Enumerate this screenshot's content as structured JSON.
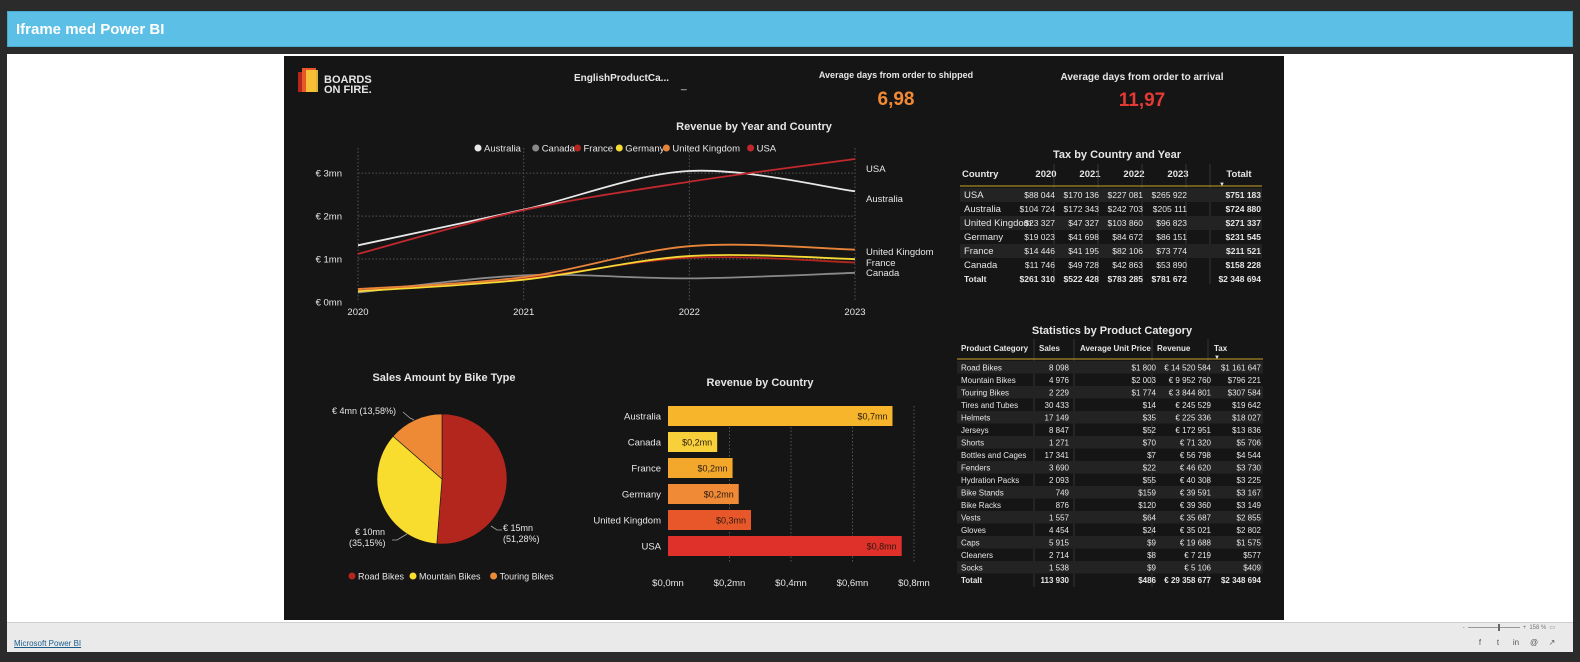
{
  "header": {
    "title": "Iframe med Power BI"
  },
  "report": {
    "logo": {
      "line1": "BOARDS",
      "line2": "ON FIRE."
    },
    "slicer": {
      "label": "EnglishProductCa...",
      "value": "_"
    },
    "kpi_shipped": {
      "label": "Average days from order to shipped",
      "value": "6,98",
      "color": "#f28a33"
    },
    "kpi_arrival": {
      "label": "Average days from order to arrival",
      "value": "11,97",
      "color": "#e53935"
    },
    "line_chart": {
      "title": "Revenue by Year and Country",
      "legend": [
        {
          "name": "Australia",
          "color": "#e8e8e8"
        },
        {
          "name": "Canada",
          "color": "#8a8a8a"
        },
        {
          "name": "France",
          "color": "#b3261e"
        },
        {
          "name": "Germany",
          "color": "#f5d935"
        },
        {
          "name": "United Kingdom",
          "color": "#e8843a"
        },
        {
          "name": "USA",
          "color": "#c0282d"
        }
      ],
      "y_ticks": [
        "€ 0mn",
        "€ 1mn",
        "€ 2mn",
        "€ 3mn"
      ],
      "x_ticks": [
        "2020",
        "2021",
        "2022",
        "2023"
      ],
      "end_labels": [
        "USA",
        "Australia",
        "United Kingdom",
        "France",
        "Canada"
      ]
    },
    "tax_table": {
      "title": "Tax by Country and Year",
      "headers": [
        "Country",
        "2020",
        "2021",
        "2022",
        "2023",
        "Totalt"
      ],
      "rows": [
        [
          "USA",
          "$88 044",
          "$170 136",
          "$227 081",
          "$265 922",
          "$751 183"
        ],
        [
          "Australia",
          "$104 724",
          "$172 343",
          "$242 703",
          "$205 111",
          "$724 880"
        ],
        [
          "United Kingdom",
          "$23 327",
          "$47 327",
          "$103 860",
          "$96 823",
          "$271 337"
        ],
        [
          "Germany",
          "$19 023",
          "$41 698",
          "$84 672",
          "$86 151",
          "$231 545"
        ],
        [
          "France",
          "$14 446",
          "$41 195",
          "$82 106",
          "$73 774",
          "$211 521"
        ],
        [
          "Canada",
          "$11 746",
          "$49 728",
          "$42 863",
          "$53 890",
          "$158 228"
        ]
      ],
      "total": [
        "Totalt",
        "$261 310",
        "$522 428",
        "$783 285",
        "$781 672",
        "$2 348 694"
      ]
    },
    "pie_chart": {
      "title": "Sales Amount by Bike Type",
      "labels": {
        "road": [
          "€ 15mn",
          "(51,28%)"
        ],
        "mountain": [
          "€ 10mn",
          "(35,15%)"
        ],
        "touring": [
          "€ 4mn (13,58%)"
        ]
      },
      "legend": [
        {
          "name": "Road Bikes",
          "color": "#b3261e"
        },
        {
          "name": "Mountain Bikes",
          "color": "#f8dd2f"
        },
        {
          "name": "Touring Bikes",
          "color": "#ee8a36"
        }
      ]
    },
    "bar_chart": {
      "title": "Revenue by Country",
      "x_ticks": [
        "$0,0mn",
        "$0,2mn",
        "$0,4mn",
        "$0,6mn",
        "$0,8mn"
      ]
    },
    "stats_table": {
      "title": "Statistics by Product Category",
      "headers": [
        "Product Category",
        "Sales",
        "Average Unit Price",
        "Revenue",
        "Tax"
      ],
      "rows": [
        [
          "Road Bikes",
          "8 098",
          "$1 800",
          "€ 14 520 584",
          "$1 161 647"
        ],
        [
          "Mountain Bikes",
          "4 976",
          "$2 003",
          "€ 9 952 760",
          "$796 221"
        ],
        [
          "Touring Bikes",
          "2 229",
          "$1 774",
          "€ 3 844 801",
          "$307 584"
        ],
        [
          "Tires and Tubes",
          "30 433",
          "$14",
          "€ 245 529",
          "$19 642"
        ],
        [
          "Helmets",
          "17 149",
          "$35",
          "€ 225 336",
          "$18 027"
        ],
        [
          "Jerseys",
          "8 847",
          "$52",
          "€ 172 951",
          "$13 836"
        ],
        [
          "Shorts",
          "1 271",
          "$70",
          "€ 71 320",
          "$5 706"
        ],
        [
          "Bottles and Cages",
          "17 341",
          "$7",
          "€ 56 798",
          "$4 544"
        ],
        [
          "Fenders",
          "3 690",
          "$22",
          "€ 46 620",
          "$3 730"
        ],
        [
          "Hydration Packs",
          "2 093",
          "$55",
          "€ 40 308",
          "$3 225"
        ],
        [
          "Bike Stands",
          "749",
          "$159",
          "€ 39 591",
          "$3 167"
        ],
        [
          "Bike Racks",
          "876",
          "$120",
          "€ 39 360",
          "$3 149"
        ],
        [
          "Vests",
          "1 557",
          "$64",
          "€ 35 687",
          "$2 855"
        ],
        [
          "Gloves",
          "4 454",
          "$24",
          "€ 35 021",
          "$2 802"
        ],
        [
          "Caps",
          "5 915",
          "$9",
          "€ 19 688",
          "$1 575"
        ],
        [
          "Cleaners",
          "2 714",
          "$8",
          "€ 7 219",
          "$577"
        ],
        [
          "Socks",
          "1 538",
          "$9",
          "€ 5 106",
          "$409"
        ]
      ],
      "total": [
        "Totalt",
        "113 930",
        "$486",
        "€ 29 358 677",
        "$2 348 694"
      ]
    }
  },
  "chart_data": [
    {
      "type": "line",
      "title": "Revenue by Year and Country",
      "x": [
        2020,
        2021,
        2022,
        2023
      ],
      "ylim": [
        0,
        3.4
      ],
      "series": [
        {
          "name": "Australia",
          "values": [
            1.32,
            2.15,
            3.05,
            2.58
          ]
        },
        {
          "name": "Canada",
          "values": [
            0.22,
            0.62,
            0.55,
            0.68
          ]
        },
        {
          "name": "France",
          "values": [
            0.28,
            0.55,
            1.03,
            0.92
          ]
        },
        {
          "name": "Germany",
          "values": [
            0.25,
            0.52,
            1.07,
            1.0
          ]
        },
        {
          "name": "United Kingdom",
          "values": [
            0.3,
            0.58,
            1.3,
            1.22
          ]
        },
        {
          "name": "USA",
          "values": [
            1.12,
            2.14,
            2.8,
            3.33
          ]
        }
      ]
    },
    {
      "type": "pie",
      "title": "Sales Amount by Bike Type",
      "categories": [
        "Road Bikes",
        "Mountain Bikes",
        "Touring Bikes"
      ],
      "values": [
        51.28,
        35.15,
        13.58
      ]
    },
    {
      "type": "bar",
      "title": "Revenue by Country",
      "categories": [
        "Australia",
        "Canada",
        "France",
        "Germany",
        "United Kingdom",
        "USA"
      ],
      "values": [
        0.73,
        0.16,
        0.21,
        0.23,
        0.27,
        0.76
      ],
      "data_labels": [
        "$0,7mn",
        "$0,2mn",
        "$0,2mn",
        "$0,2mn",
        "$0,3mn",
        "$0,8mn"
      ],
      "colors": [
        "#f6b52a",
        "#f8d13a",
        "#f3a82c",
        "#f08a36",
        "#e8572a",
        "#e0302a"
      ],
      "xlim": [
        0,
        0.8
      ]
    }
  ],
  "footer": {
    "link": "Microsoft Power BI",
    "zoom": "158 %",
    "share_icons": [
      "f",
      "t",
      "in",
      "@",
      "↗"
    ]
  }
}
